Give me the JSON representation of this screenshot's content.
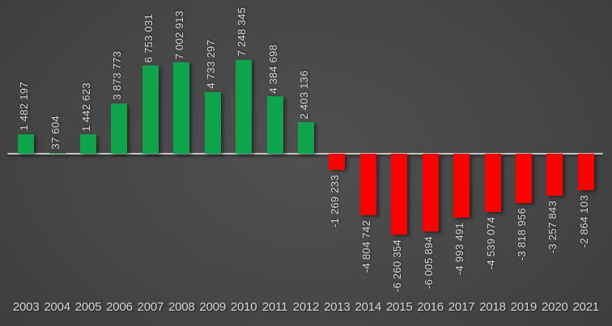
{
  "chart_data": {
    "type": "bar",
    "title": "",
    "xlabel": "",
    "ylabel": "",
    "categories": [
      "2003",
      "2004",
      "2005",
      "2006",
      "2007",
      "2008",
      "2009",
      "2010",
      "2011",
      "2012",
      "2013",
      "2014",
      "2015",
      "2016",
      "2017",
      "2018",
      "2019",
      "2020",
      "2021"
    ],
    "values": [
      1482197,
      37604,
      1442623,
      3873773,
      6753031,
      7002913,
      4733297,
      7248345,
      4384698,
      2403136,
      -1269233,
      -4804742,
      -6260354,
      -6005894,
      -4993491,
      -4539074,
      -3818956,
      -3257843,
      -2864103
    ],
    "data_labels": [
      "1 482 197",
      "37 604",
      "1 442 623",
      "3 873 773",
      "6 753 031",
      "7 002 913",
      "4 733 297",
      "7 248 345",
      "4 384 698",
      "2 403 136",
      "-1 269 233",
      "-4 804 742",
      "-6 260 354",
      "-6 005 894",
      "-4 993 491",
      "-4 539 074",
      "-3 818 956",
      "-3 257 843",
      "-2 864 103"
    ],
    "data_label_rotation_degrees": 90,
    "ylim": [
      -6500000,
      7500000
    ],
    "grid": false,
    "legend": false,
    "colors": {
      "positive_bar": "#0EA44C",
      "negative_bar": "#FE0000",
      "data_label": "#D6D6D6",
      "category_label": "#D6D6D6",
      "axis_line": "#C6C6C6",
      "background_center": "#4E4E4E",
      "background_edge": "#242424"
    }
  }
}
